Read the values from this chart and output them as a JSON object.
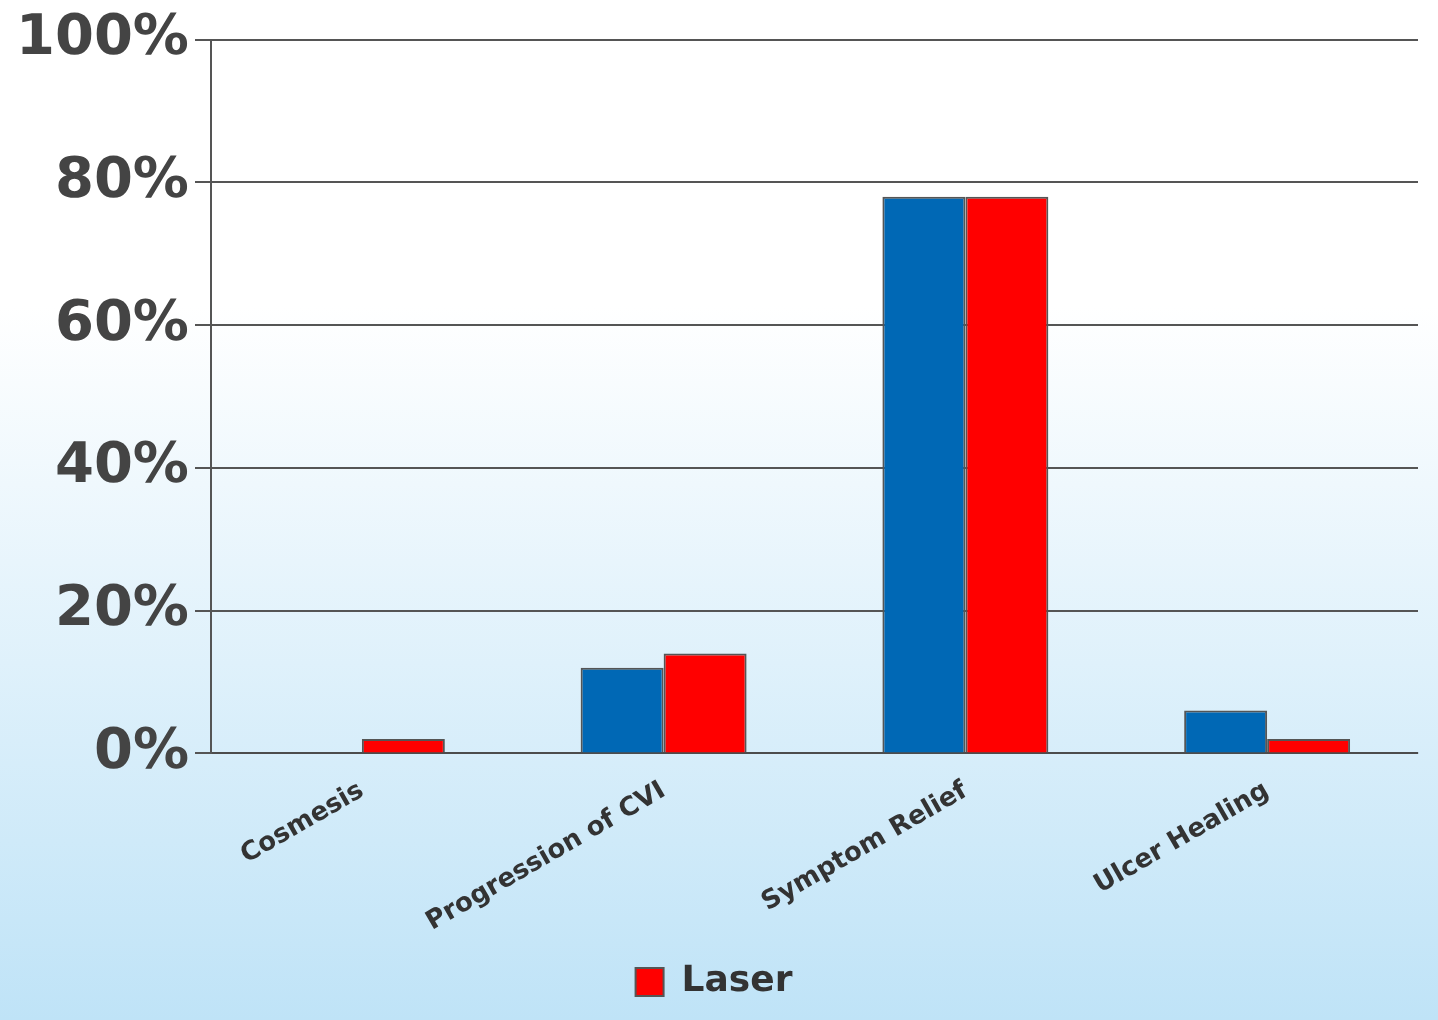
{
  "chart_data": {
    "type": "bar",
    "categories": [
      "Cosmesis",
      "Progression of CVI",
      "Symptom Relief",
      "Ulcer Healing"
    ],
    "series": [
      {
        "color": "#0068b5",
        "values": [
          0,
          12,
          78,
          6
        ]
      },
      {
        "name": "Laser",
        "color": "#ff0000",
        "values": [
          2,
          14,
          78,
          2
        ]
      }
    ],
    "ylim": [
      0,
      100
    ],
    "yticks": [
      {
        "value": 0,
        "label": "0%"
      },
      {
        "value": 20,
        "label": "20%"
      },
      {
        "value": 40,
        "label": "40%"
      },
      {
        "value": 60,
        "label": "60%"
      },
      {
        "value": 80,
        "label": "80%"
      },
      {
        "value": 100,
        "label": "100%"
      }
    ],
    "grid": "y",
    "legend": "bottom"
  }
}
